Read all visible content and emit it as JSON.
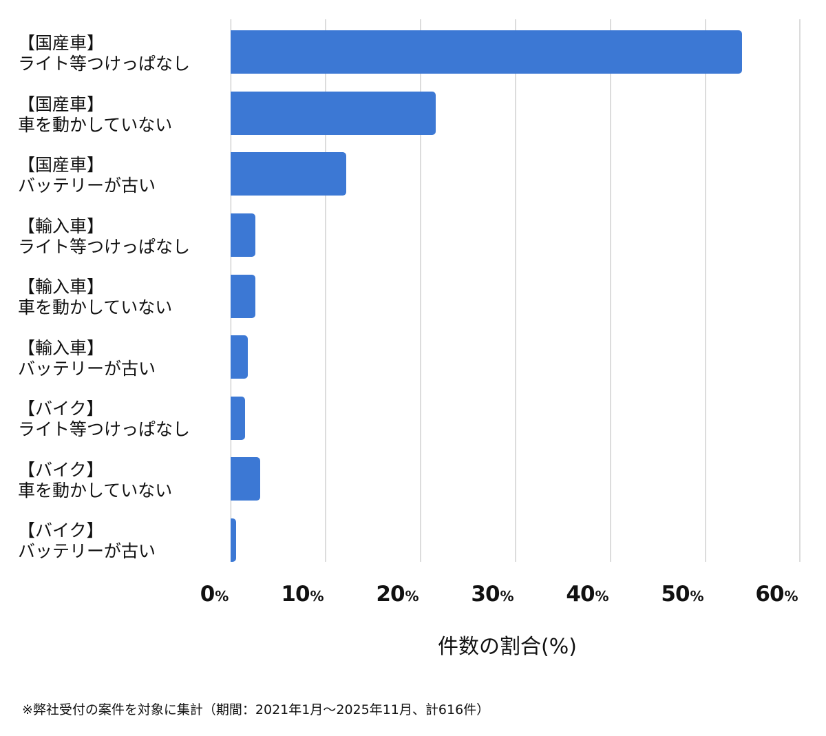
{
  "chart_data": {
    "type": "bar",
    "orientation": "horizontal",
    "title": "",
    "categories": [
      "【国産車】ライト等つけっぱなし",
      "【国産車】車を動かしていない",
      "【国産車】バッテリーが古い",
      "【輸入車】ライト等つけっぱなし",
      "【輸入車】車を動かしていない",
      "【輸入車】バッテリーが古い",
      "【バイク】ライト等つけっぱなし",
      "【バイク】車を動かしていない",
      "【バイク】バッテリーが古い"
    ],
    "values": [
      53.9,
      21.6,
      12.2,
      2.6,
      2.6,
      1.8,
      1.5,
      3.1,
      0.6
    ],
    "xlabel": "件数の割合(%)",
    "ylabel": "",
    "xlim": [
      0,
      60
    ],
    "xticks": [
      0,
      10,
      20,
      30,
      40,
      50,
      60
    ],
    "grid": true,
    "legend": null,
    "bar_color": "#3c78d4"
  },
  "labels": [
    {
      "group": "【国産車】",
      "reason": "ライト等つけっぱなし"
    },
    {
      "group": "【国産車】",
      "reason": "車を動かしていない"
    },
    {
      "group": "【国産車】",
      "reason": "バッテリーが古い"
    },
    {
      "group": "【輸入車】",
      "reason": "ライト等つけっぱなし"
    },
    {
      "group": "【輸入車】",
      "reason": "車を動かしていない"
    },
    {
      "group": "【輸入車】",
      "reason": "バッテリーが古い"
    },
    {
      "group": "【バイク】",
      "reason": "ライト等つけっぱなし"
    },
    {
      "group": "【バイク】",
      "reason": "車を動かしていない"
    },
    {
      "group": "【バイク】",
      "reason": "バッテリーが古い"
    }
  ],
  "ticks": [
    {
      "num": "0",
      "unit": "%"
    },
    {
      "num": "10",
      "unit": "%"
    },
    {
      "num": "20",
      "unit": "%"
    },
    {
      "num": "30",
      "unit": "%"
    },
    {
      "num": "40",
      "unit": "%"
    },
    {
      "num": "50",
      "unit": "%"
    },
    {
      "num": "60",
      "unit": "%"
    }
  ],
  "axis_title": "件数の割合(%)",
  "footnote": "※弊社受付の案件を対象に集計（期間：2021年1月〜2025年11月、計616件）"
}
